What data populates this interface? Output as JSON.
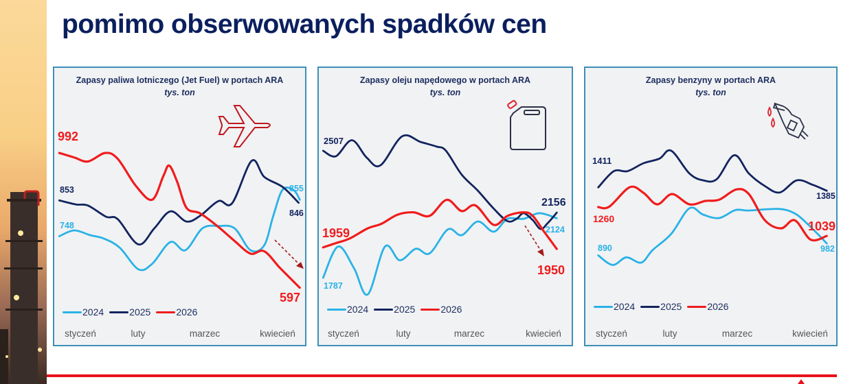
{
  "slide": {
    "title_line2": "pomimo obserwowanych spadków cen"
  },
  "colors": {
    "y2024": "#29b2e6",
    "y2025": "#12245e",
    "y2026": "#f01c1c",
    "title": "#0b1f5e",
    "border": "#3d8fb8"
  },
  "chart_data": [
    {
      "type": "line",
      "title": "Zapasy paliwa lotniczego (Jet Fuel) w portach ARA",
      "subtitle": "tys. ton",
      "icon": "airplane-icon",
      "xlabel": "",
      "ylabel": "tys. ton",
      "x_ticks": [
        "styczeń",
        "luty",
        "marzec",
        "kwiecień"
      ],
      "ylim": [
        552,
        1155
      ],
      "grid": false,
      "legend": "bottom-left",
      "series": [
        {
          "name": "2024",
          "x": [
            0,
            6.2,
            12.9,
            18.6,
            25.2,
            32.9,
            38.6,
            46.2,
            52.4,
            59.5,
            66.2,
            72.9,
            79.5,
            85.2,
            89,
            92.9,
            97.6,
            100
          ],
          "values": [
            748,
            765,
            751,
            741,
            714,
            651,
            667,
            731,
            707,
            771,
            778,
            771,
            707,
            721,
            808,
            885,
            882,
            855
          ]
        },
        {
          "name": "2025",
          "x": [
            0,
            7.1,
            11.9,
            19.5,
            24.3,
            32.9,
            39.5,
            46.2,
            52.9,
            58.6,
            66.2,
            71.9,
            80,
            85.2,
            92.9,
            99.5
          ],
          "values": [
            853,
            841,
            838,
            805,
            798,
            724,
            771,
            821,
            791,
            808,
            851,
            845,
            969,
            922,
            892,
            846
          ]
        },
        {
          "name": "2026",
          "x": [
            0,
            6.2,
            11.9,
            19,
            24.3,
            31.9,
            38.6,
            43.3,
            45.7,
            49,
            52.9,
            58.6,
            66.2,
            72.9,
            79.5,
            85.2,
            91.9,
            100
          ],
          "values": [
            992,
            979,
            967,
            992,
            975,
            895,
            855,
            925,
            955,
            908,
            831,
            815,
            775,
            734,
            697,
            704,
            654,
            597
          ]
        }
      ],
      "annotations": {
        "start_2026": "992",
        "start_2025": "853",
        "start_2024": "748",
        "end_2024": "855",
        "end_2025": "846",
        "end_2026": "597"
      }
    },
    {
      "type": "line",
      "title": "Zapasy oleju napędowego w portach ARA",
      "subtitle": "tys. ton",
      "icon": "jerrycan-icon",
      "xlabel": "",
      "ylabel": "tys. ton",
      "x_ticks": [
        "styczeń",
        "luty",
        "marzec",
        "kwiecień"
      ],
      "ylim": [
        1643,
        2810
      ],
      "grid": false,
      "legend": "bottom-left",
      "series": [
        {
          "name": "2024",
          "x": [
            0,
            6.4,
            13.2,
            19.1,
            26.5,
            32.8,
            39.7,
            45.6,
            53.4,
            59.3,
            66.2,
            73,
            78.9,
            85.8,
            92.6,
            100
          ],
          "values": [
            1787,
            1964,
            1841,
            1692,
            1964,
            1886,
            1951,
            1925,
            2061,
            2028,
            2106,
            2048,
            2121,
            2121,
            2153,
            2124
          ]
        },
        {
          "name": "2025",
          "x": [
            0,
            5.4,
            12.3,
            18.6,
            24.5,
            33.8,
            41.7,
            48.5,
            52.5,
            59.3,
            66.2,
            73,
            78.9,
            82.8,
            85.8,
            89.7,
            93.1,
            96.1,
            100
          ],
          "values": [
            2507,
            2476,
            2567,
            2469,
            2424,
            2589,
            2557,
            2531,
            2508,
            2372,
            2281,
            2179,
            2108,
            2121,
            2153,
            2114,
            2063,
            2096,
            2156
          ]
        },
        {
          "name": "2026",
          "x": [
            0,
            5.4,
            11.3,
            19.1,
            25,
            31.9,
            38.7,
            45.6,
            52.9,
            59.3,
            65.2,
            73,
            78.9,
            85.8,
            89.7,
            94.6,
            100
          ],
          "values": [
            1959,
            1983,
            2009,
            2067,
            2093,
            2145,
            2158,
            2138,
            2229,
            2165,
            2197,
            2087,
            2138,
            2158,
            2138,
            2048,
            1950
          ]
        }
      ],
      "annotations": {
        "start_2025": "2507",
        "start_2026": "1959",
        "start_2024": "1787",
        "end_2025": "2156",
        "end_2024": "2124",
        "end_2026": "1950"
      }
    },
    {
      "type": "line",
      "title": "Zapasy benzyny w portach ARA",
      "subtitle": "tys. ton",
      "icon": "fuel-nozzle-icon",
      "xlabel": "",
      "ylabel": "tys. ton",
      "x_ticks": [
        "styczeń",
        "luty",
        "marzec",
        "kwiecień"
      ],
      "ylim": [
        525,
        2100
      ],
      "grid": false,
      "legend": "bottom-left",
      "series": [
        {
          "name": "2024",
          "x": [
            0,
            6.3,
            12.3,
            18.8,
            23.8,
            31.9,
            39.9,
            45.9,
            52.9,
            60,
            65.9,
            79,
            86,
            92,
            100
          ],
          "values": [
            890,
            817,
            875,
            835,
            931,
            1054,
            1251,
            1202,
            1176,
            1237,
            1234,
            1246,
            1211,
            1124,
            982
          ]
        },
        {
          "name": "2025",
          "x": [
            0,
            6.8,
            12.8,
            19.8,
            26.8,
            31.9,
            39.9,
            45.9,
            51.9,
            59.5,
            65.9,
            72.9,
            79.4,
            86.9,
            93.9,
            100
          ],
          "values": [
            1411,
            1535,
            1535,
            1596,
            1631,
            1692,
            1517,
            1465,
            1474,
            1657,
            1517,
            1421,
            1372,
            1465,
            1430,
            1385
          ]
        },
        {
          "name": "2026",
          "x": [
            0,
            4.8,
            13.8,
            19.8,
            25.8,
            32.3,
            39.9,
            46.9,
            52.9,
            60.4,
            65.9,
            72.9,
            80,
            86,
            93,
            100
          ],
          "values": [
            1260,
            1263,
            1412,
            1369,
            1281,
            1360,
            1281,
            1307,
            1316,
            1395,
            1360,
            1159,
            1097,
            1159,
            1010,
            1039
          ]
        }
      ],
      "annotations": {
        "start_2025": "1411",
        "start_2026": "1260",
        "start_2024": "890",
        "end_2025": "1385",
        "end_2026": "1039",
        "end_2024": "982"
      }
    }
  ]
}
